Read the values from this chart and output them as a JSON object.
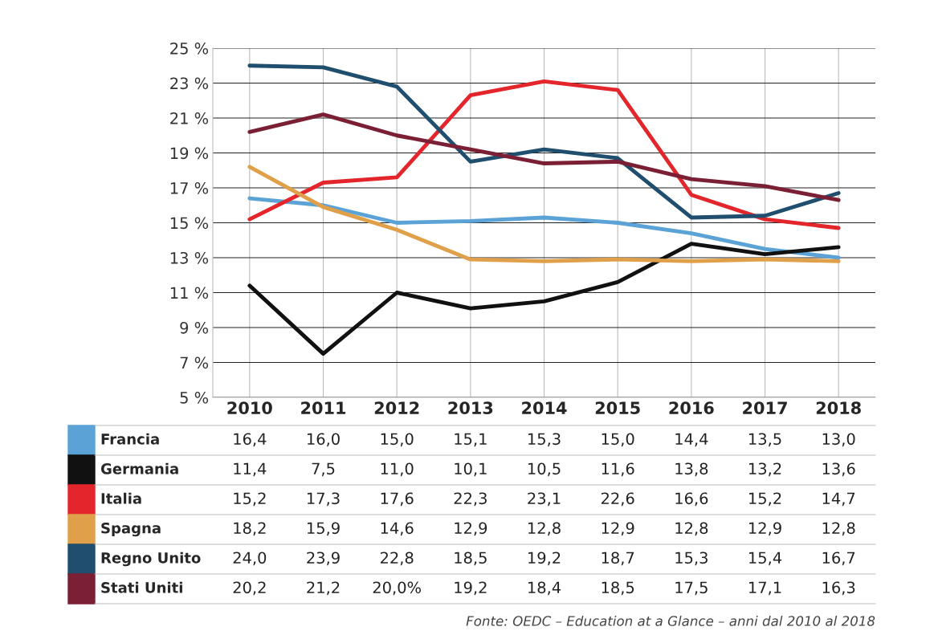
{
  "chart_data": {
    "type": "line",
    "categories": [
      "2010",
      "2011",
      "2012",
      "2013",
      "2014",
      "2015",
      "2016",
      "2017",
      "2018"
    ],
    "series": [
      {
        "name": "Francia",
        "color": "#5ba3d6",
        "values": [
          16.4,
          16.0,
          15.0,
          15.1,
          15.3,
          15.0,
          14.4,
          13.5,
          13.0
        ],
        "value_labels": [
          "16,4",
          "16,0",
          "15,0",
          "15,1",
          "15,3",
          "15,0",
          "14,4",
          "13,5",
          "13,0"
        ]
      },
      {
        "name": "Germania",
        "color": "#111111",
        "values": [
          11.4,
          7.5,
          11.0,
          10.1,
          10.5,
          11.6,
          13.8,
          13.2,
          13.6
        ],
        "value_labels": [
          "11,4",
          "7,5",
          "11,0",
          "10,1",
          "10,5",
          "11,6",
          "13,8",
          "13,2",
          "13,6"
        ]
      },
      {
        "name": "Italia",
        "color": "#e3262b",
        "values": [
          15.2,
          17.3,
          17.6,
          22.3,
          23.1,
          22.6,
          16.6,
          15.2,
          14.7
        ],
        "value_labels": [
          "15,2",
          "17,3",
          "17,6",
          "22,3",
          "23,1",
          "22,6",
          "16,6",
          "15,2",
          "14,7"
        ]
      },
      {
        "name": "Spagna",
        "color": "#e0a04a",
        "values": [
          18.2,
          15.9,
          14.6,
          12.9,
          12.8,
          12.9,
          12.8,
          12.9,
          12.8
        ],
        "value_labels": [
          "18,2",
          "15,9",
          "14,6",
          "12,9",
          "12,8",
          "12,9",
          "12,8",
          "12,9",
          "12,8"
        ]
      },
      {
        "name": "Regno Unito",
        "color": "#1f4e6e",
        "values": [
          24.0,
          23.9,
          22.8,
          18.5,
          19.2,
          18.7,
          15.3,
          15.4,
          16.7
        ],
        "value_labels": [
          "24,0",
          "23,9",
          "22,8",
          "18,5",
          "19,2",
          "18,7",
          "15,3",
          "15,4",
          "16,7"
        ]
      },
      {
        "name": "Stati Uniti",
        "color": "#7b1f35",
        "values": [
          20.2,
          21.2,
          20.0,
          19.2,
          18.4,
          18.5,
          17.5,
          17.1,
          16.3
        ],
        "value_labels": [
          "20,2",
          "21,2",
          "20,0%",
          "19,2",
          "18,4",
          "18,5",
          "17,5",
          "17,1",
          "16,3"
        ]
      }
    ],
    "ylim": [
      5,
      25
    ],
    "yticks": [
      {
        "value": 5,
        "label": "5 %"
      },
      {
        "value": 7,
        "label": "7 %"
      },
      {
        "value": 9,
        "label": "9 %"
      },
      {
        "value": 11,
        "label": "11 %"
      },
      {
        "value": 13,
        "label": "13 %"
      },
      {
        "value": 15,
        "label": "15 %"
      },
      {
        "value": 17,
        "label": "17 %"
      },
      {
        "value": 19,
        "label": "19 %"
      },
      {
        "value": 21,
        "label": "21 %"
      },
      {
        "value": 23,
        "label": "23 %"
      },
      {
        "value": 25,
        "label": "25 %"
      }
    ],
    "grid": true,
    "legend": "bottom left",
    "line_style": "solid",
    "annotations": [
      "Fonte: OEDC – Education at a Glance – anni dal 2010 al 2018"
    ]
  }
}
